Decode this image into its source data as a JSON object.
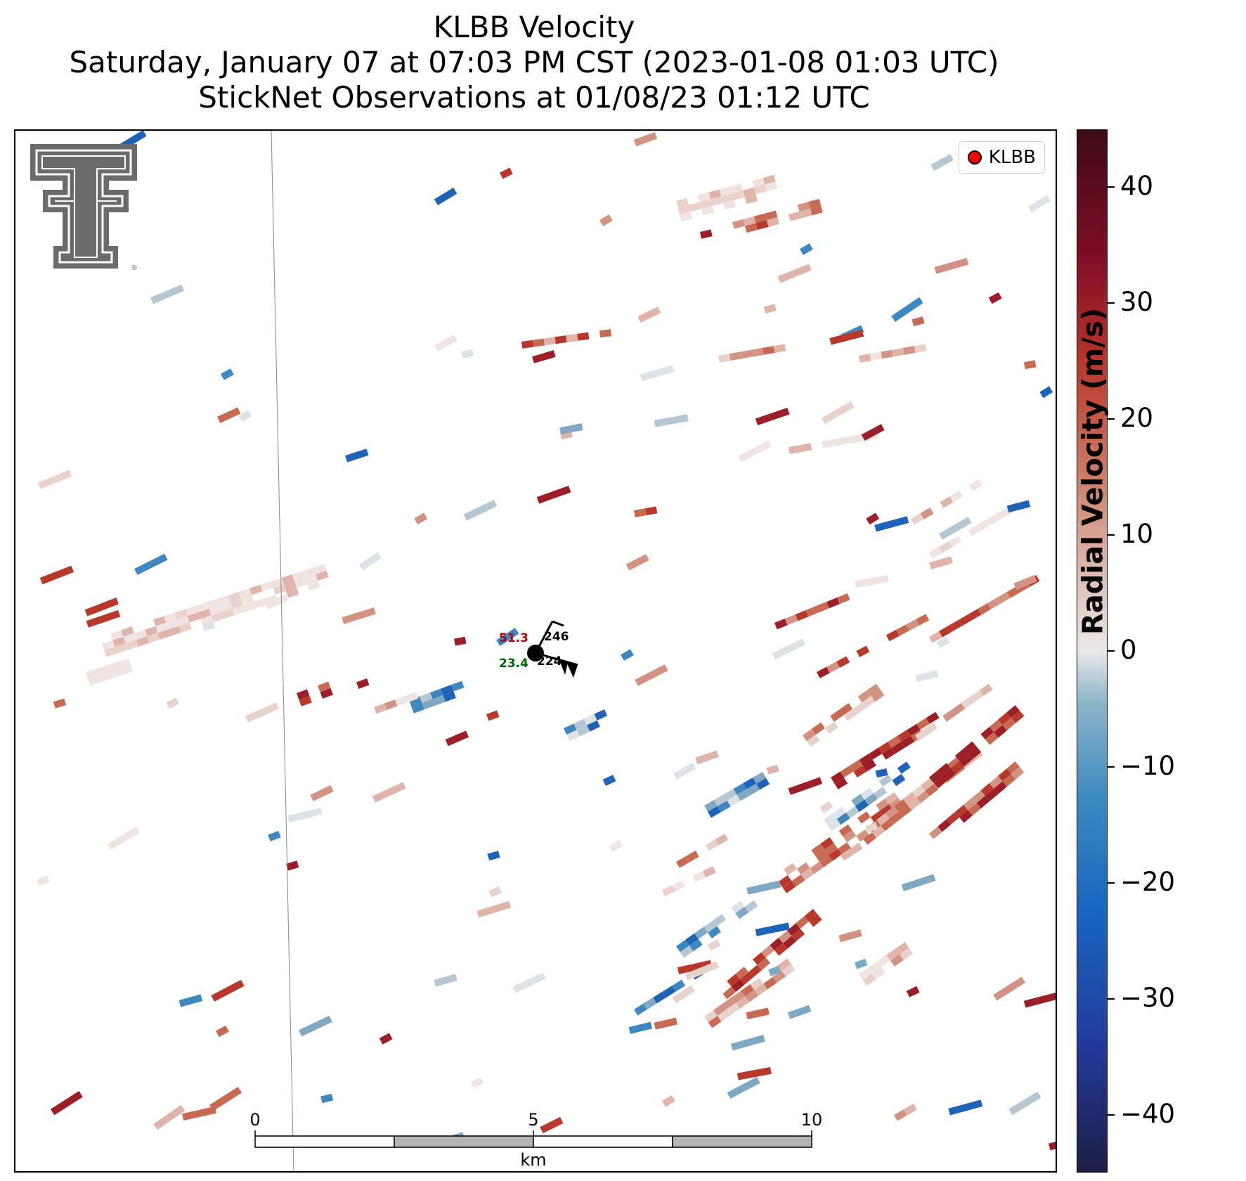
{
  "titles": {
    "line1": "KLBB Velocity",
    "line2": "Saturday, January 07 at 07:03 PM CST (2023-01-08 01:03 UTC)",
    "line3": "StickNet Observations at 01/08/23 01:12 UTC"
  },
  "legend": {
    "label": "KLBB",
    "marker_color": "#ff0000"
  },
  "colorbar": {
    "label": "Radial Velocity (m/s)",
    "ticks": [
      "40",
      "30",
      "20",
      "10",
      "0",
      "−10",
      "−20",
      "−30",
      "−40"
    ],
    "range": [
      -45,
      45
    ]
  },
  "station": {
    "temperature": "51.3",
    "dewpoint": "23.4",
    "upper_value": "246",
    "lower_value": "224",
    "temperature_color": "#b30000",
    "dewpoint_color": "#006400"
  },
  "scale_bar": {
    "labels": [
      "0",
      "5",
      "10"
    ],
    "unit": "km"
  },
  "logo": {
    "name": "Texas Tech Double T",
    "trademark": "®"
  }
}
